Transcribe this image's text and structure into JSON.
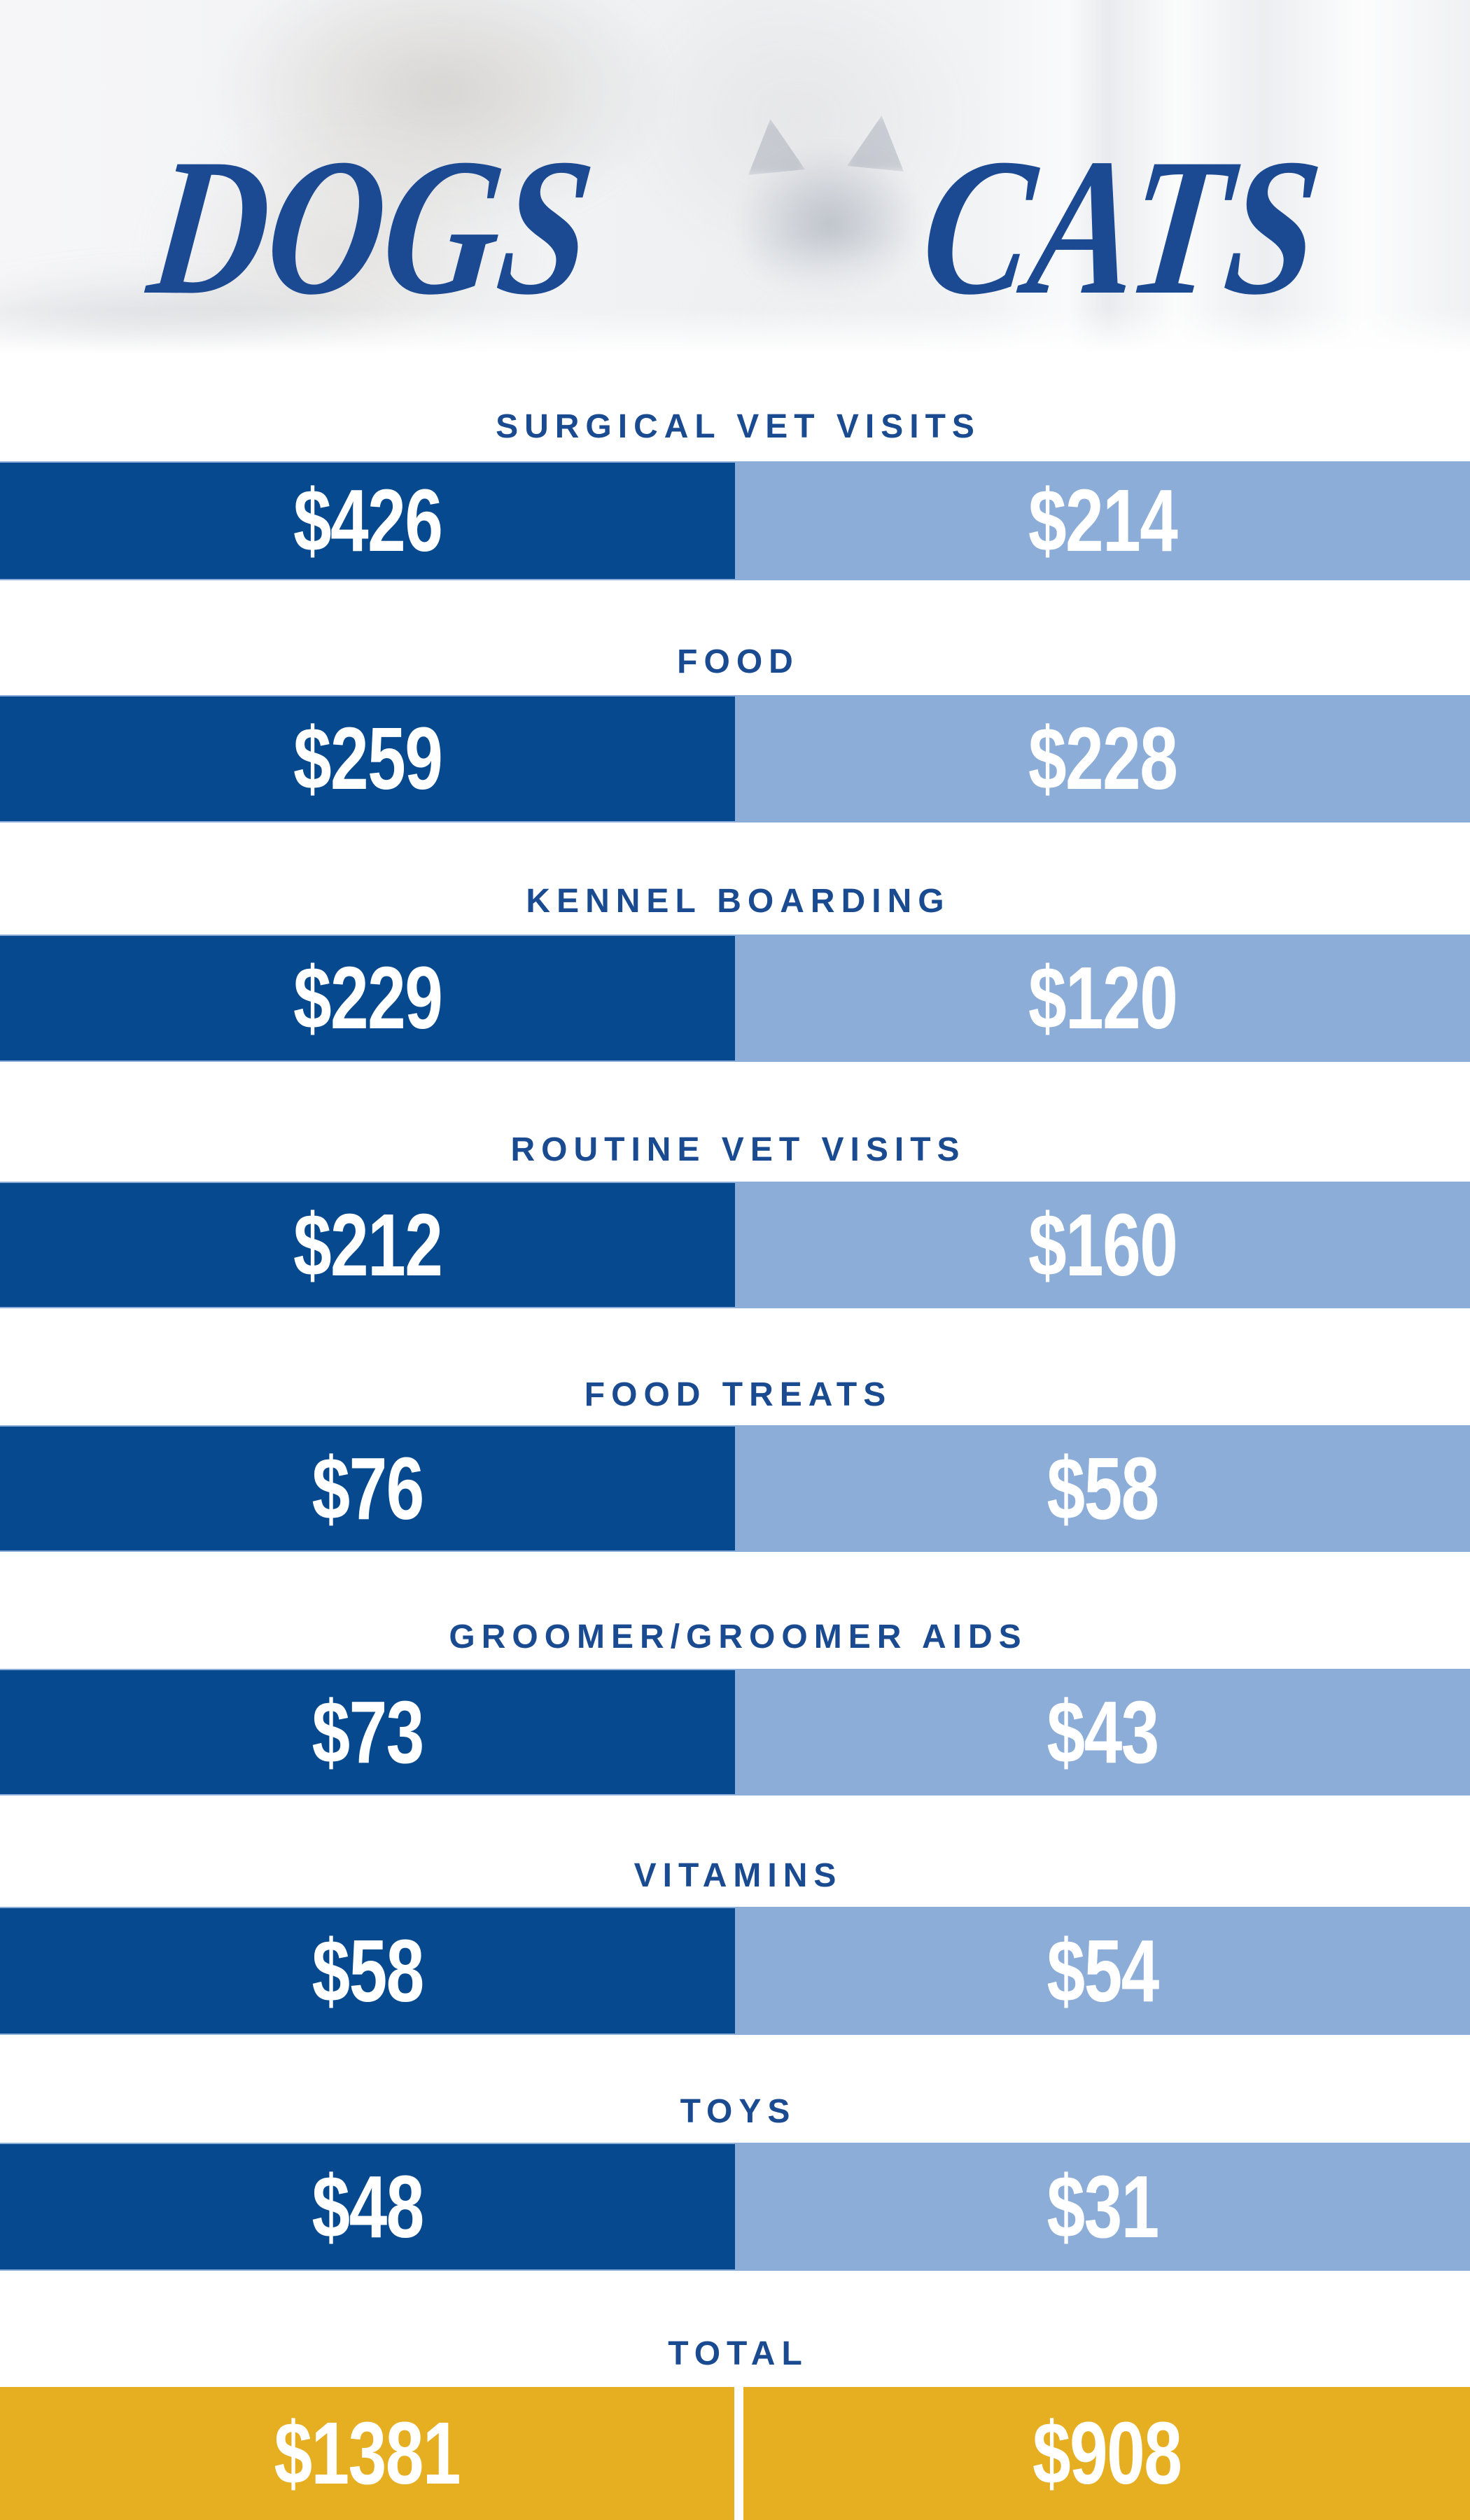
{
  "header": {
    "dogs_title": "DOGS",
    "cats_title": "CATS"
  },
  "rows": [
    {
      "label": "SURGICAL VET VISITS",
      "dog": "$426",
      "cat": "$214"
    },
    {
      "label": "FOOD",
      "dog": "$259",
      "cat": "$228"
    },
    {
      "label": "KENNEL BOARDING",
      "dog": "$229",
      "cat": "$120"
    },
    {
      "label": "ROUTINE VET VISITS",
      "dog": "$212",
      "cat": "$160"
    },
    {
      "label": "FOOD TREATS",
      "dog": "$76",
      "cat": "$58"
    },
    {
      "label": "GROOMER/GROOMER AIDS",
      "dog": "$73",
      "cat": "$43"
    },
    {
      "label": "VITAMINS",
      "dog": "$58",
      "cat": "$54"
    },
    {
      "label": "TOYS",
      "dog": "$48",
      "cat": "$31"
    }
  ],
  "total": {
    "label": "TOTAL",
    "dog": "$1381",
    "cat": "$908"
  },
  "colors": {
    "dogs_bar": "#07498f",
    "cats_bar": "#8cadd8",
    "total_bar": "#e6ae21",
    "navy_text": "#1a4b90",
    "title_blue": "#1b4a93",
    "value_text": "#ffffff"
  },
  "chart_data": {
    "type": "bar",
    "title": "DOGS vs CATS annual pet costs",
    "legend": [
      "DOGS",
      "CATS"
    ],
    "legend_position": "top",
    "unit": "USD",
    "grid": false,
    "categories": [
      "SURGICAL VET VISITS",
      "FOOD",
      "KENNEL BOARDING",
      "ROUTINE VET VISITS",
      "FOOD TREATS",
      "GROOMER/GROOMER AIDS",
      "VITAMINS",
      "TOYS"
    ],
    "series": [
      {
        "name": "DOGS",
        "values": [
          426,
          259,
          229,
          212,
          76,
          73,
          58,
          48
        ],
        "color": "#07498f"
      },
      {
        "name": "CATS",
        "values": [
          214,
          228,
          120,
          160,
          58,
          43,
          54,
          31
        ],
        "color": "#8cadd8"
      }
    ],
    "totals": {
      "DOGS": 1381,
      "CATS": 908,
      "color": "#e6ae21"
    }
  }
}
